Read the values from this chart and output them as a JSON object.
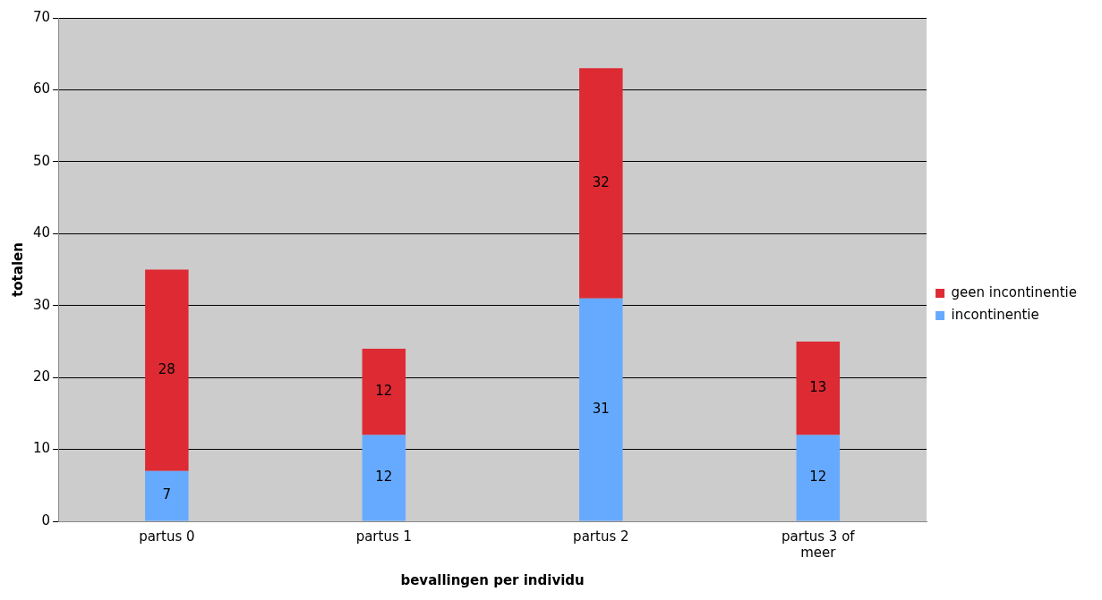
{
  "chart_data": {
    "type": "bar",
    "stacked": true,
    "xlabel": "bevallingen per individu",
    "ylabel": "totalen",
    "categories": [
      "partus 0",
      "partus 1",
      "partus 2",
      "partus 3 of meer"
    ],
    "series": [
      {
        "name": "incontinentie",
        "color": "#66aaff",
        "values": [
          7,
          12,
          31,
          12
        ]
      },
      {
        "name": "geen incontinentie",
        "color": "#dd2a33",
        "values": [
          28,
          12,
          32,
          13
        ]
      }
    ],
    "ylim": [
      0,
      70
    ],
    "yticks": [
      0,
      10,
      20,
      30,
      40,
      50,
      60,
      70
    ],
    "grid": "y",
    "legend": "right",
    "data_labels": true
  }
}
